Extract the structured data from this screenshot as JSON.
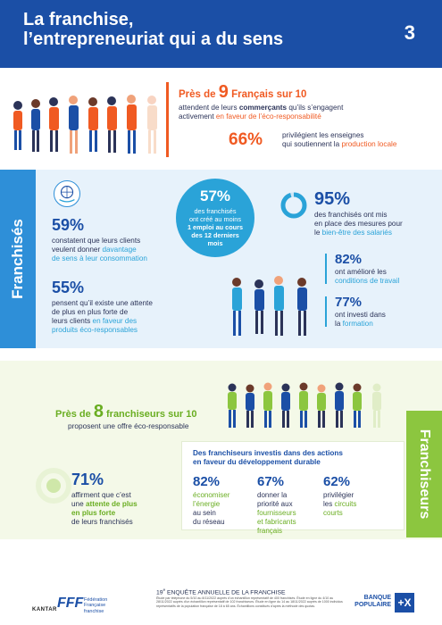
{
  "header": {
    "title_line1": "La franchise,",
    "title_line2": "l’entrepreneuriat qui a du sens",
    "page_number": "3",
    "bg_color": "#1b4fa6"
  },
  "consumers": {
    "line1_a": "Près de ",
    "line1_num": "9",
    "line1_b": " Français sur 10",
    "line2_a": "attendent de leurs ",
    "line2_bold": "commerçants",
    "line2_b": " qu’ils s’engagent",
    "line3_a": "activement ",
    "line3_hl": "en faveur de l’éco-responsabilité",
    "stat_66": "66%",
    "stat_66_l1": "privilégient les enseignes",
    "stat_66_l2a": "qui soutiennent la ",
    "stat_66_l2hl": "production locale",
    "accent": "#f05a22"
  },
  "franchises": {
    "tab_label": "Franchisés",
    "stat_59": "59%",
    "stat_59_t1": "constatent que leurs clients",
    "stat_59_t2a": "veulent donner ",
    "stat_59_t2hl": "davantage",
    "stat_59_t3hl": "de sens à leur consommation",
    "stat_55": "55%",
    "stat_55_t1": "pensent qu’il existe une attente",
    "stat_55_t2": "de plus en plus forte de",
    "stat_55_t3a": "leurs clients ",
    "stat_55_t3hl": "en faveur des",
    "stat_55_t4hl": "produits éco-responsables",
    "stat_57": "57%",
    "stat_57_t1": "des franchisés",
    "stat_57_t2": "ont créé au moins",
    "stat_57_t3": "1 emploi au cours",
    "stat_57_t4": "des 12 derniers",
    "stat_57_t5": "mois",
    "stat_95": "95%",
    "stat_95_t1": "des franchisés ont mis",
    "stat_95_t2": "en place des mesures pour",
    "stat_95_t3a": "le ",
    "stat_95_t3hl": "bien-être des salariés",
    "stat_82": "82%",
    "stat_82_t1": "ont amélioré les",
    "stat_82_t2hl": "conditions de travail",
    "stat_77": "77%",
    "stat_77_t1": "ont investi dans",
    "stat_77_t2a": "la ",
    "stat_77_t2hl": "formation",
    "accent": "#2e8fd8"
  },
  "franchiseurs": {
    "tab_label": "Franchiseurs",
    "line1_a": "Près de ",
    "line1_num": "8",
    "line1_b": " franchiseurs sur 10",
    "line2": "proposent une offre éco-responsable",
    "stat_71": "71%",
    "stat_71_t1": "affirment que c’est",
    "stat_71_t2a": "une ",
    "stat_71_t2b": "attente de plus",
    "stat_71_t3": "en plus forte",
    "stat_71_t4": "de leurs franchisés",
    "box_title_l1": "Des franchiseurs investis dans des actions",
    "box_title_l2": "en faveur du développement durable",
    "stat_82": "82%",
    "stat_82_t1hl": "économiser",
    "stat_82_t2hl": "l’énergie",
    "stat_82_t3": "au sein",
    "stat_82_t4": "du réseau",
    "stat_67": "67%",
    "stat_67_t1": "donner la",
    "stat_67_t2": "priorité aux",
    "stat_67_t3hl": "fournisseurs",
    "stat_67_t4hl": "et fabricants",
    "stat_67_t5hl": "français",
    "stat_62": "62%",
    "stat_62_t1": "privilégier",
    "stat_62_t2a": "les ",
    "stat_62_t2hl": "circuits",
    "stat_62_t3hl": "courts",
    "accent": "#8cc63f"
  },
  "footer": {
    "title_a": "19",
    "title_sup": "e",
    "title_b": " ENQUÊTE ANNUELLE DE LA FRANCHISE",
    "small": "Étude par téléphone du 5/10 au 8/11/2022 auprès d'un échantillon représentatif de 400 franchisés. Étude en ligne du 4/10 au 28/11/2022 auprès d'un échantillon représentatif de 102 franchiseurs. Étude en ligne du 14 au 18/11/2022 auprès de 1000 individus représentatifs de la population française de 18 à 65 ans. Échantillons constitués d'après la méthode des quotas.",
    "kantar": "KANTAR",
    "fff_mark": "FFF",
    "fff_l1": "Fédération",
    "fff_l2": "Française",
    "fff_l3": "franchise",
    "bp_l1": "BANQUE",
    "bp_l2": "POPULAIRE",
    "bp_mark": "+X"
  }
}
